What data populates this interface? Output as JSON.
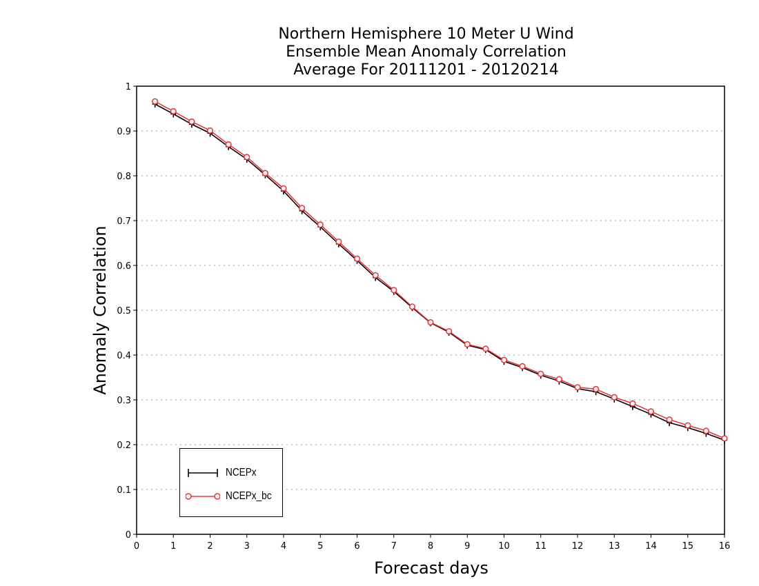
{
  "chart_data": {
    "type": "line",
    "title_lines": [
      "Northern Hemisphere 10 Meter U Wind",
      "Ensemble Mean Anomaly Correlation",
      "Average For 20111201 - 20120214"
    ],
    "xlabel": "Forecast days",
    "ylabel": "Anomaly Correlation",
    "xlim": [
      0,
      16
    ],
    "ylim": [
      0,
      1
    ],
    "x_ticks": [
      "0",
      "1",
      "2",
      "3",
      "4",
      "5",
      "6",
      "7",
      "8",
      "9",
      "10",
      "11",
      "12",
      "13",
      "14",
      "15",
      "16"
    ],
    "y_ticks": [
      "0",
      "0.1",
      "0.2",
      "0.3",
      "0.4",
      "0.5",
      "0.6",
      "0.7",
      "0.8",
      "0.9",
      "1"
    ],
    "grid": "horizontal dotted",
    "legend_position": "bottom-left",
    "x": [
      0.5,
      1,
      1.5,
      2,
      2.5,
      3,
      3.5,
      4,
      4.5,
      5,
      5.5,
      6,
      6.5,
      7,
      7.5,
      8,
      8.5,
      9,
      9.5,
      10,
      10.5,
      11,
      11.5,
      12,
      12.5,
      13,
      13.5,
      14,
      14.5,
      15,
      15.5,
      16
    ],
    "series": [
      {
        "name": "NCEPx",
        "color": "#000000",
        "marker": "plus",
        "values": [
          0.96,
          0.938,
          0.915,
          0.895,
          0.865,
          0.837,
          0.802,
          0.766,
          0.722,
          0.686,
          0.648,
          0.611,
          0.573,
          0.542,
          0.506,
          0.472,
          0.451,
          0.422,
          0.412,
          0.386,
          0.372,
          0.355,
          0.342,
          0.325,
          0.318,
          0.302,
          0.285,
          0.268,
          0.249,
          0.238,
          0.225,
          0.21
        ]
      },
      {
        "name": "NCEPx_bc",
        "color": "#e8393b",
        "marker": "circle",
        "values": [
          0.966,
          0.944,
          0.921,
          0.901,
          0.87,
          0.842,
          0.806,
          0.772,
          0.728,
          0.691,
          0.653,
          0.615,
          0.578,
          0.545,
          0.508,
          0.473,
          0.453,
          0.424,
          0.414,
          0.389,
          0.375,
          0.358,
          0.346,
          0.328,
          0.324,
          0.306,
          0.292,
          0.274,
          0.256,
          0.243,
          0.231,
          0.214
        ]
      }
    ]
  }
}
